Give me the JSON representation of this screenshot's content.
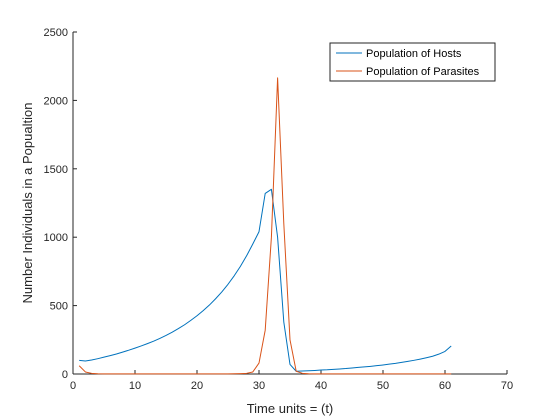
{
  "chart_data": {
    "type": "line",
    "title": "",
    "xlabel": "Time units = (t)",
    "ylabel": "Number Individuals in a Popualtion",
    "xlim": [
      0,
      70
    ],
    "ylim": [
      0,
      2500
    ],
    "xticks": [
      0,
      10,
      20,
      30,
      40,
      50,
      60,
      70
    ],
    "yticks": [
      0,
      500,
      1000,
      1500,
      2000,
      2500
    ],
    "grid": false,
    "legend_position": "top-right",
    "series": [
      {
        "name": "Population of Hosts",
        "color": "#0072BD",
        "x": [
          1,
          2,
          3,
          4,
          5,
          6,
          7,
          8,
          9,
          10,
          11,
          12,
          13,
          14,
          15,
          16,
          17,
          18,
          19,
          20,
          21,
          22,
          23,
          24,
          25,
          26,
          27,
          28,
          29,
          30,
          31,
          32,
          33,
          34,
          35,
          36,
          37,
          38,
          39,
          40,
          41,
          42,
          43,
          44,
          45,
          46,
          47,
          48,
          49,
          50,
          51,
          52,
          53,
          54,
          55,
          56,
          57,
          58,
          59,
          60,
          61
        ],
        "y": [
          100,
          95,
          102,
          112,
          123,
          134,
          146,
          160,
          174,
          189,
          205,
          222,
          240,
          260,
          282,
          306,
          332,
          360,
          392,
          426,
          463,
          504,
          550,
          600,
          656,
          718,
          787,
          864,
          950,
          1040,
          1320,
          1350,
          1000,
          380,
          70,
          20,
          22,
          24,
          26,
          29,
          31,
          34,
          37,
          40,
          44,
          48,
          52,
          56,
          61,
          66,
          72,
          78,
          85,
          92,
          100,
          109,
          119,
          130,
          145,
          165,
          205
        ]
      },
      {
        "name": "Population of Parasites",
        "color": "#D95319",
        "x": [
          1,
          2,
          3,
          4,
          5,
          6,
          7,
          8,
          9,
          10,
          11,
          12,
          13,
          14,
          15,
          16,
          17,
          18,
          19,
          20,
          21,
          22,
          23,
          24,
          25,
          26,
          27,
          28,
          29,
          30,
          31,
          32,
          33,
          34,
          35,
          36,
          37,
          38,
          39,
          40,
          41,
          42,
          43,
          44,
          45,
          46,
          47,
          48,
          49,
          50,
          51,
          52,
          53,
          54,
          55,
          56,
          57,
          58,
          59,
          60,
          61
        ],
        "y": [
          60,
          15,
          5,
          2,
          1,
          1,
          1,
          1,
          1,
          1,
          1,
          1,
          1,
          1,
          1,
          1,
          1,
          1,
          1,
          1,
          1,
          1,
          1,
          1,
          1,
          2,
          3,
          5,
          15,
          80,
          320,
          1000,
          2165,
          1100,
          250,
          20,
          5,
          2,
          1,
          1,
          1,
          1,
          1,
          1,
          1,
          1,
          1,
          1,
          1,
          1,
          1,
          1,
          1,
          1,
          1,
          1,
          1,
          1,
          1,
          1,
          1
        ]
      }
    ]
  }
}
